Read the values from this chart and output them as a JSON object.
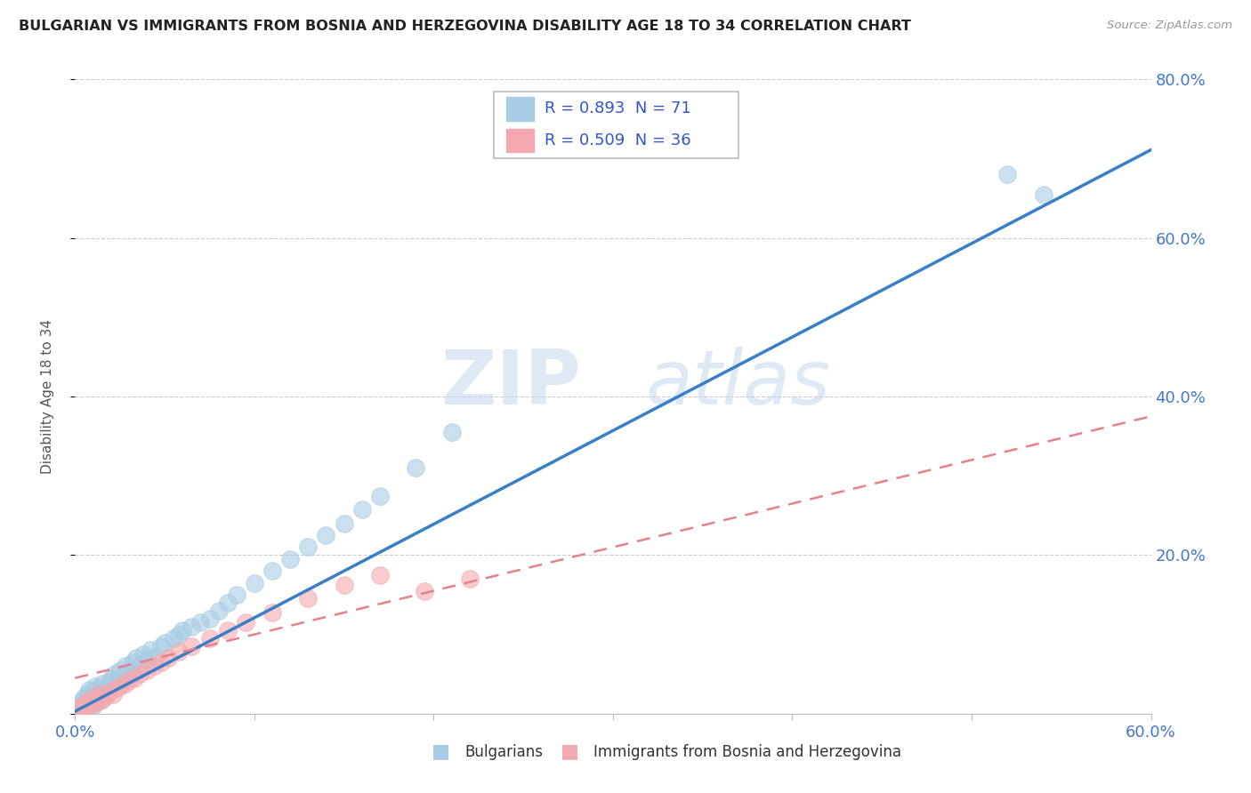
{
  "title": "BULGARIAN VS IMMIGRANTS FROM BOSNIA AND HERZEGOVINA DISABILITY AGE 18 TO 34 CORRELATION CHART",
  "source": "Source: ZipAtlas.com",
  "ylabel": "Disability Age 18 to 34",
  "xlim": [
    0.0,
    0.6
  ],
  "ylim": [
    0.0,
    0.8
  ],
  "watermark_line1": "ZIP",
  "watermark_line2": "atlas",
  "legend_R1": "R = 0.893",
  "legend_N1": "N = 71",
  "legend_R2": "R = 0.509",
  "legend_N2": "N = 36",
  "blue_color": "#a8cce4",
  "pink_color": "#f4a9b0",
  "trend_blue": "#3a7ec8",
  "trend_pink": "#e8808a",
  "blue_slope": 1.18,
  "blue_intercept": 0.003,
  "pink_slope": 0.55,
  "pink_intercept": 0.045,
  "blue_scatter_x": [
    0.002,
    0.003,
    0.004,
    0.004,
    0.005,
    0.005,
    0.006,
    0.006,
    0.007,
    0.007,
    0.007,
    0.008,
    0.008,
    0.008,
    0.009,
    0.009,
    0.01,
    0.01,
    0.01,
    0.011,
    0.011,
    0.012,
    0.012,
    0.013,
    0.013,
    0.014,
    0.014,
    0.015,
    0.015,
    0.016,
    0.017,
    0.018,
    0.019,
    0.02,
    0.021,
    0.022,
    0.023,
    0.025,
    0.027,
    0.028,
    0.03,
    0.032,
    0.034,
    0.036,
    0.038,
    0.04,
    0.042,
    0.045,
    0.048,
    0.05,
    0.055,
    0.058,
    0.06,
    0.065,
    0.07,
    0.075,
    0.08,
    0.085,
    0.09,
    0.1,
    0.11,
    0.12,
    0.13,
    0.14,
    0.15,
    0.16,
    0.17,
    0.19,
    0.21,
    0.52,
    0.54
  ],
  "blue_scatter_y": [
    0.005,
    0.008,
    0.01,
    0.015,
    0.012,
    0.02,
    0.008,
    0.018,
    0.01,
    0.015,
    0.025,
    0.012,
    0.02,
    0.03,
    0.015,
    0.025,
    0.01,
    0.018,
    0.028,
    0.02,
    0.035,
    0.015,
    0.025,
    0.02,
    0.032,
    0.018,
    0.03,
    0.022,
    0.038,
    0.025,
    0.03,
    0.035,
    0.04,
    0.045,
    0.038,
    0.05,
    0.042,
    0.055,
    0.048,
    0.06,
    0.055,
    0.065,
    0.07,
    0.06,
    0.075,
    0.068,
    0.08,
    0.072,
    0.085,
    0.09,
    0.095,
    0.1,
    0.105,
    0.11,
    0.115,
    0.12,
    0.13,
    0.14,
    0.15,
    0.165,
    0.18,
    0.195,
    0.21,
    0.225,
    0.24,
    0.258,
    0.275,
    0.31,
    0.355,
    0.68,
    0.655
  ],
  "pink_scatter_x": [
    0.002,
    0.004,
    0.005,
    0.006,
    0.007,
    0.008,
    0.009,
    0.01,
    0.011,
    0.012,
    0.013,
    0.015,
    0.017,
    0.019,
    0.021,
    0.023,
    0.025,
    0.028,
    0.03,
    0.033,
    0.036,
    0.04,
    0.044,
    0.048,
    0.052,
    0.058,
    0.065,
    0.075,
    0.085,
    0.095,
    0.11,
    0.13,
    0.15,
    0.17,
    0.195,
    0.22
  ],
  "pink_scatter_y": [
    0.005,
    0.01,
    0.008,
    0.012,
    0.015,
    0.01,
    0.018,
    0.012,
    0.02,
    0.015,
    0.025,
    0.018,
    0.022,
    0.028,
    0.025,
    0.032,
    0.035,
    0.038,
    0.042,
    0.045,
    0.05,
    0.055,
    0.06,
    0.065,
    0.07,
    0.078,
    0.085,
    0.095,
    0.105,
    0.115,
    0.128,
    0.145,
    0.162,
    0.175,
    0.155,
    0.17
  ]
}
